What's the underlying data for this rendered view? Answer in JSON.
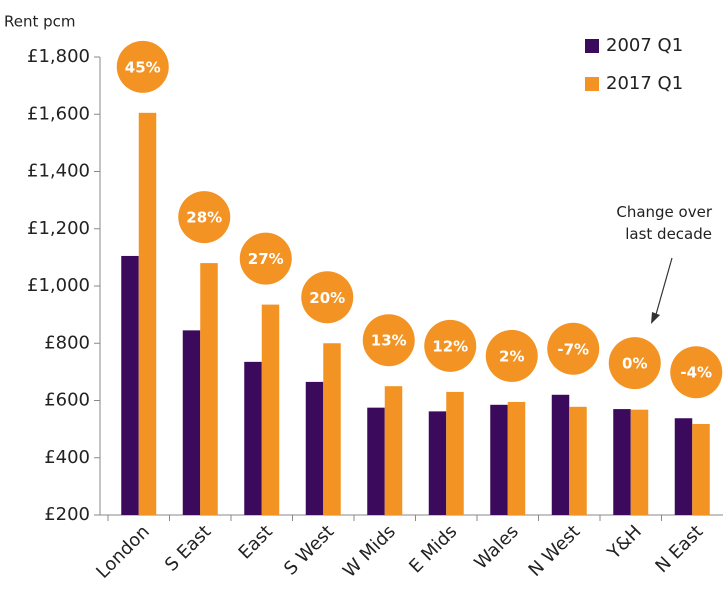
{
  "chart_data": {
    "type": "bar",
    "y_label": "Rent pcm",
    "annotation": "Change over last decade",
    "categories": [
      "London",
      "S East",
      "East",
      "S West",
      "W Mids",
      "E Mids",
      "Wales",
      "N West",
      "Y&H",
      "N East"
    ],
    "series": [
      {
        "name": "2007 Q1",
        "color": "#3b0a5c",
        "values": [
          1105,
          845,
          735,
          665,
          575,
          562,
          585,
          620,
          570,
          538
        ]
      },
      {
        "name": "2017 Q1",
        "color": "#f39323",
        "values": [
          1605,
          1080,
          935,
          800,
          650,
          630,
          595,
          578,
          568,
          518
        ]
      }
    ],
    "change_labels": [
      "45%",
      "28%",
      "27%",
      "20%",
      "13%",
      "12%",
      "2%",
      "-7%",
      "0%",
      "-4%"
    ],
    "ylim": [
      200,
      1800
    ],
    "yticks": [
      {
        "value": 200,
        "label": "£200"
      },
      {
        "value": 400,
        "label": "£400"
      },
      {
        "value": 600,
        "label": "£600"
      },
      {
        "value": 800,
        "label": "£800"
      },
      {
        "value": 1000,
        "label": "£1,000"
      },
      {
        "value": 1200,
        "label": "£1,200"
      },
      {
        "value": 1400,
        "label": "£1,400"
      },
      {
        "value": 1600,
        "label": "£1,600"
      },
      {
        "value": 1800,
        "label": "£1,800"
      }
    ],
    "legend": "top-right"
  }
}
